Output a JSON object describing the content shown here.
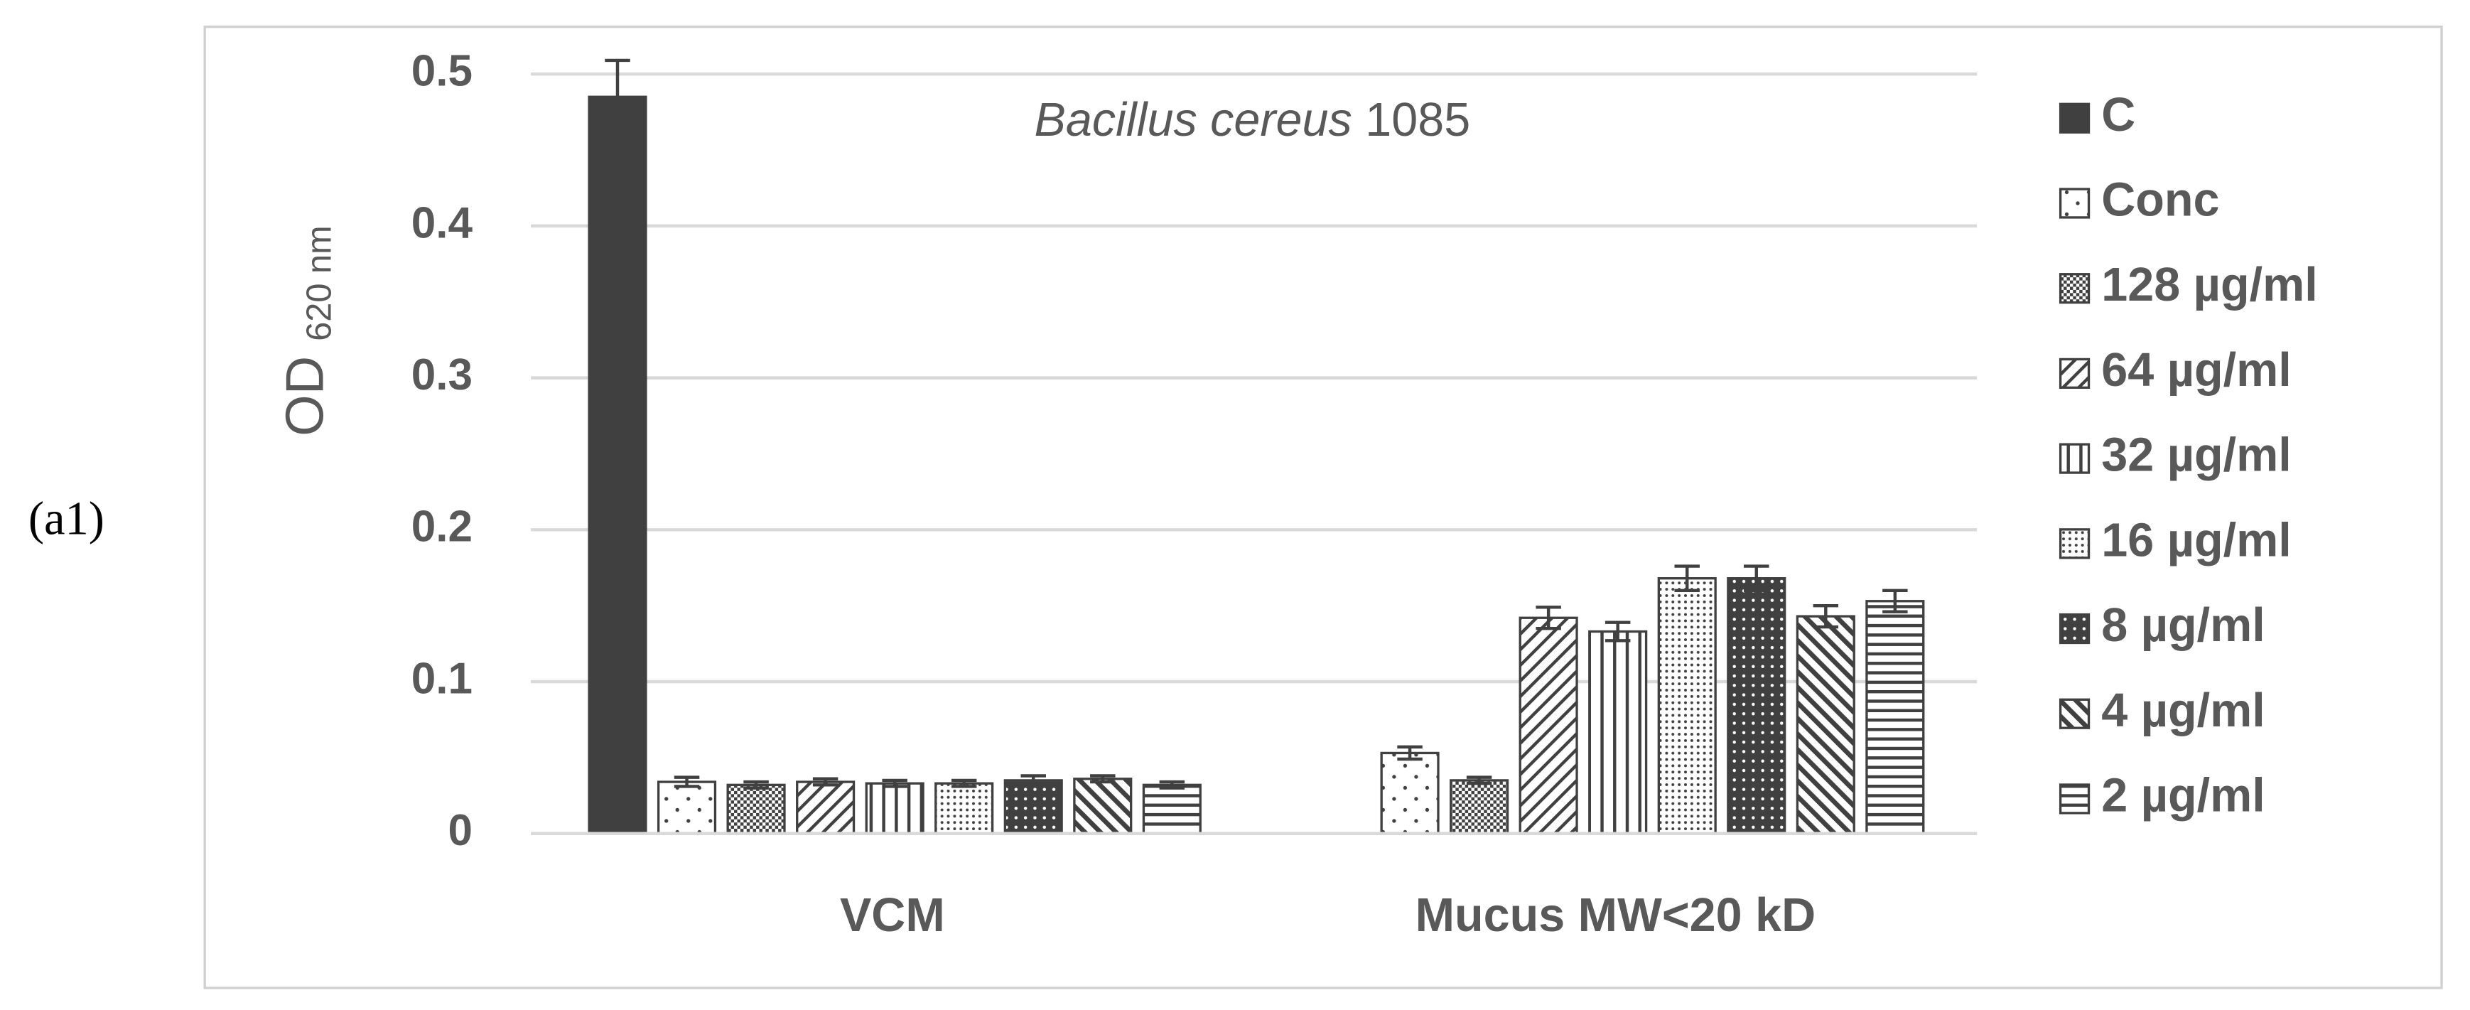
{
  "chart_data": {
    "type": "bar",
    "panel_label": "(a1)",
    "title": {
      "italic": "Bacillus cereus",
      "plain": "1085"
    },
    "ylabel": "OD",
    "ylabel_sub": "620 nm",
    "categories": [
      "VCM",
      "Mucus MW<20 kD"
    ],
    "ylim": [
      0,
      0.5
    ],
    "yticks": [
      0,
      0.1,
      0.2,
      0.3,
      0.4,
      0.5
    ],
    "grid": true,
    "legend": "right",
    "series": [
      {
        "name": "C",
        "color": "#404040",
        "pattern": "solid",
        "values": [
          0.485,
          null
        ],
        "errors": [
          0.024,
          null
        ]
      },
      {
        "name": "Conc",
        "color": "#404040",
        "pattern": "sparse-dots",
        "values": [
          0.034,
          0.053
        ],
        "errors": [
          0.003,
          0.004
        ]
      },
      {
        "name": "128 µg/ml",
        "color": "#404040",
        "pattern": "checker",
        "values": [
          0.032,
          0.035
        ],
        "errors": [
          0.002,
          0.002
        ]
      },
      {
        "name": "64 µg/ml",
        "color": "#404040",
        "pattern": "diag-down",
        "values": [
          0.034,
          0.142
        ],
        "errors": [
          0.002,
          0.007
        ]
      },
      {
        "name": "32 µg/ml",
        "color": "#404040",
        "pattern": "vertical",
        "values": [
          0.033,
          0.133
        ],
        "errors": [
          0.002,
          0.006
        ]
      },
      {
        "name": "16 µg/ml",
        "color": "#404040",
        "pattern": "fine-dots",
        "values": [
          0.033,
          0.168
        ],
        "errors": [
          0.002,
          0.008
        ]
      },
      {
        "name": "8 µg/ml",
        "color": "#404040",
        "pattern": "dark-dots",
        "values": [
          0.035,
          0.168
        ],
        "errors": [
          0.003,
          0.008
        ]
      },
      {
        "name": "4 µg/ml",
        "color": "#404040",
        "pattern": "diag-up",
        "values": [
          0.036,
          0.143
        ],
        "errors": [
          0.002,
          0.007
        ]
      },
      {
        "name": "2 µg/ml",
        "color": "#404040",
        "pattern": "horizontal",
        "values": [
          0.032,
          0.153
        ],
        "errors": [
          0.002,
          0.007
        ]
      }
    ]
  }
}
